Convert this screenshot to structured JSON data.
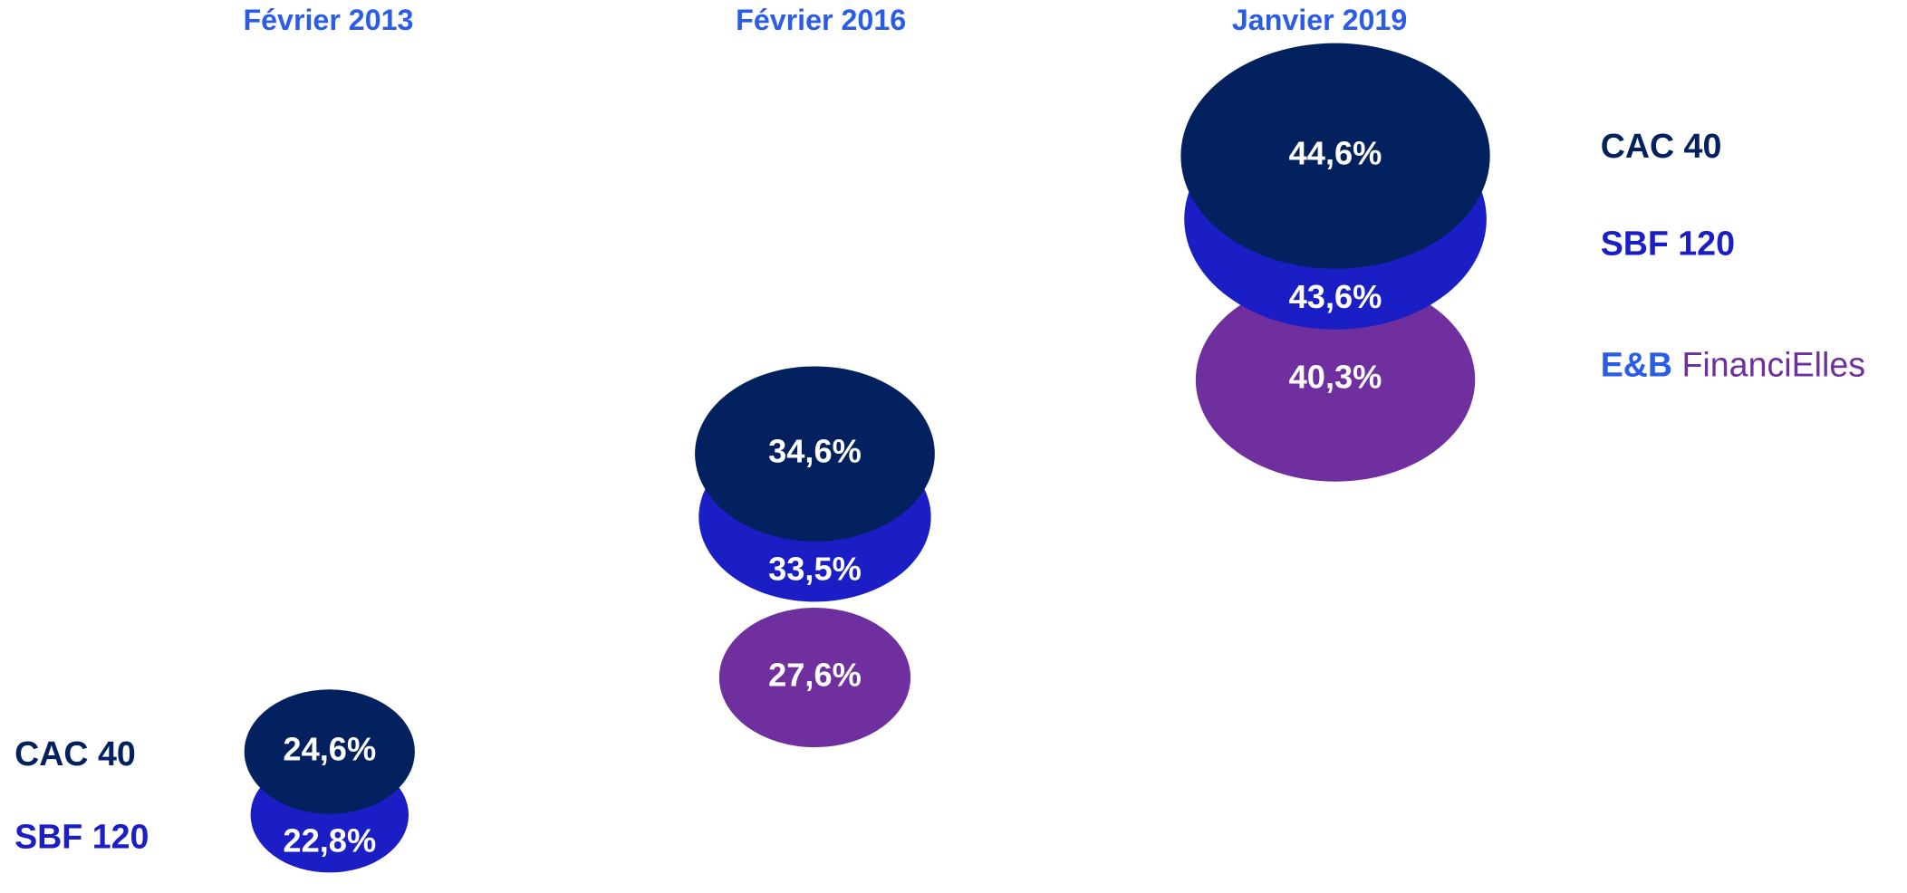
{
  "chart_data": {
    "type": "bubble",
    "categories": [
      "Février 2013",
      "Février 2016",
      "Janvier  2019"
    ],
    "series": [
      {
        "name": "CAC 40",
        "color": "#03215f",
        "values": [
          24.6,
          34.6,
          44.6
        ],
        "value_labels": [
          "24,6%",
          "34,6%",
          "44,6%"
        ]
      },
      {
        "name": "SBF 120",
        "color": "#1a1ec4",
        "values": [
          22.8,
          33.5,
          43.6
        ],
        "value_labels": [
          "22,8%",
          "33,5%",
          "43,6%"
        ]
      },
      {
        "name": "E&B FinanciElles",
        "color": "#6f2f9f",
        "values": [
          null,
          27.6,
          40.3
        ],
        "value_labels": [
          null,
          "27,6%",
          "40,3%"
        ]
      }
    ],
    "legend": "right"
  }
}
